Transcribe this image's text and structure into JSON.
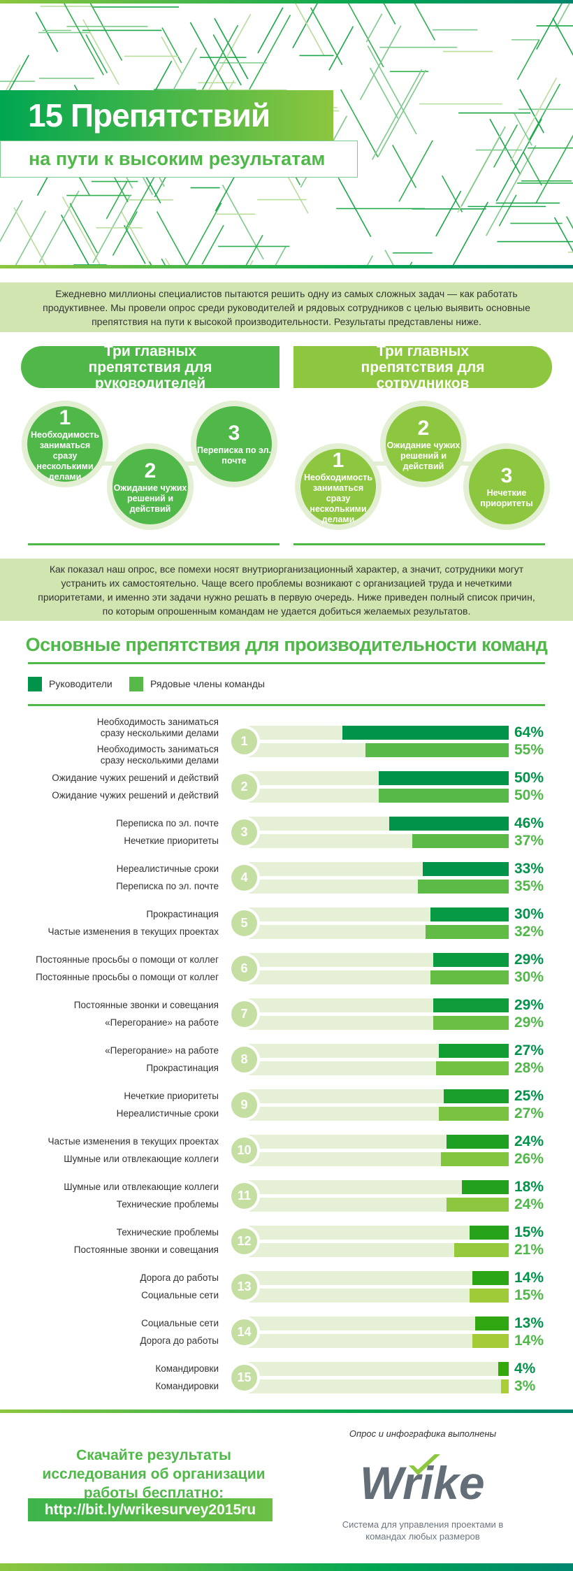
{
  "header": {
    "title": "15 Препятствий",
    "subtitle": "на пути к высоким результатам"
  },
  "intro": "Ежедневно миллионы специалистов пытаются решить одну из самых сложных задач — как работать продуктивнее. Мы провели опрос среди руководителей и рядовых сотрудников с целью выявить основные препятствия на пути к высокой производительности. Результаты представлены ниже.",
  "top3": [
    {
      "heading": "Три главных препятствия для руководителей",
      "color": "#4fb848",
      "items": [
        {
          "n": "1",
          "text": "Необходимость заниматься сразу несколькими делами"
        },
        {
          "n": "2",
          "text": "Ожидание чужих решений и действий"
        },
        {
          "n": "3",
          "text": "Переписка по эл. почте"
        }
      ]
    },
    {
      "heading": "Три главных препятствия для сотрудников",
      "color": "#8dc63f",
      "items": [
        {
          "n": "1",
          "text": "Необходимость заниматься сразу несколькими делами"
        },
        {
          "n": "2",
          "text": "Ожидание чужих решений и действий"
        },
        {
          "n": "3",
          "text": "Нечеткие приоритеты"
        }
      ]
    }
  ],
  "summary": "Как показал наш опрос, все помехи носят внутриорганизационный характер, а значит, сотрудники могут устранить их самостоятельно. Чаще всего проблемы возникают с организацией труда и нечеткими приоритетами, и именно эти задачи нужно решать в первую очередь. Ниже приведен полный список причин, по которым опрошенным командам не удается добиться желаемых результатов.",
  "chart_data": {
    "type": "bar",
    "orientation": "horizontal",
    "title": "Основные препятствия для производительности команд",
    "legend": [
      {
        "name": "Руководители",
        "color": "#00934a"
      },
      {
        "name": "Рядовые члены команды",
        "color": "#57b947"
      }
    ],
    "legend_position": "top-left",
    "xlim": [
      0,
      100
    ],
    "unit": "%",
    "groups": [
      {
        "rank": "1",
        "leader": {
          "label": "Необходимость заниматься сразу несколькими делами",
          "value": 64,
          "color": "#00934a"
        },
        "member": {
          "label": "Необходимость заниматься сразу несколькими делами",
          "value": 55,
          "color": "#57b947"
        }
      },
      {
        "rank": "2",
        "leader": {
          "label": "Ожидание чужих решений и действий",
          "value": 50,
          "color": "#00934a"
        },
        "member": {
          "label": "Ожидание чужих решений и действий",
          "value": 50,
          "color": "#57b947"
        }
      },
      {
        "rank": "3",
        "leader": {
          "label": "Переписка по эл. почте",
          "value": 46,
          "color": "#00934a"
        },
        "member": {
          "label": "Нечеткие приоритеты",
          "value": 37,
          "color": "#5bba47"
        }
      },
      {
        "rank": "4",
        "leader": {
          "label": "Нереалистичные сроки",
          "value": 33,
          "color": "#00934a"
        },
        "member": {
          "label": "Переписка по эл. почте",
          "value": 35,
          "color": "#5cba46"
        }
      },
      {
        "rank": "5",
        "leader": {
          "label": "Прокрастинация",
          "value": 30,
          "color": "#059a43"
        },
        "member": {
          "label": "Частые изменения в текущих проектах",
          "value": 32,
          "color": "#61bc45"
        }
      },
      {
        "rank": "6",
        "leader": {
          "label": "Постоянные просьбы о помощи от коллег",
          "value": 29,
          "color": "#0a9b40"
        },
        "member": {
          "label": "Постоянные просьбы о помощи от коллег",
          "value": 30,
          "color": "#66bd44"
        }
      },
      {
        "rank": "7",
        "leader": {
          "label": "Постоянные звонки и совещания",
          "value": 29,
          "color": "#0f9c3a"
        },
        "member": {
          "label": "«Перегорание» на работе",
          "value": 29,
          "color": "#6bbf43"
        }
      },
      {
        "rank": "8",
        "leader": {
          "label": "«Перегорание» на работе",
          "value": 27,
          "color": "#149d33"
        },
        "member": {
          "label": "Прокрастинация",
          "value": 28,
          "color": "#72c142"
        }
      },
      {
        "rank": "9",
        "leader": {
          "label": "Нечеткие приоритеты",
          "value": 25,
          "color": "#199e2b"
        },
        "member": {
          "label": "Нереалистичные сроки",
          "value": 27,
          "color": "#7ac341"
        }
      },
      {
        "rank": "10",
        "leader": {
          "label": "Частые изменения в текущих проектах",
          "value": 24,
          "color": "#1fa023"
        },
        "member": {
          "label": "Шумные или отвлекающие коллеги",
          "value": 26,
          "color": "#84c53f"
        }
      },
      {
        "rank": "11",
        "leader": {
          "label": "Шумные или отвлекающие коллеги",
          "value": 18,
          "color": "#22a11e"
        },
        "member": {
          "label": "Технические проблемы",
          "value": 24,
          "color": "#8dc63f"
        }
      },
      {
        "rank": "12",
        "leader": {
          "label": "Технические проблемы",
          "value": 15,
          "color": "#26a31a"
        },
        "member": {
          "label": "Постоянные звонки и совещания",
          "value": 21,
          "color": "#96c93c"
        }
      },
      {
        "rank": "13",
        "leader": {
          "label": "Дорога до работы",
          "value": 14,
          "color": "#2ba515"
        },
        "member": {
          "label": "Социальные сети",
          "value": 15,
          "color": "#9fcb39"
        }
      },
      {
        "rank": "14",
        "leader": {
          "label": "Социальные сети",
          "value": 13,
          "color": "#30a610"
        },
        "member": {
          "label": "Дорога до работы",
          "value": 14,
          "color": "#a5cc37"
        }
      },
      {
        "rank": "15",
        "leader": {
          "label": "Командировки",
          "value": 4,
          "color": "#35a80c"
        },
        "member": {
          "label": "Командировки",
          "value": 3,
          "color": "#aacd35"
        }
      }
    ]
  },
  "footer": {
    "download": "Скачайте результаты исследования об организации работы бесплатно:",
    "url": "http://bit.ly/wrikesurvey2015ru",
    "credit": "Опрос и инфографика выполнены",
    "logo": "Wrike",
    "tagline": "Система для управления проектами в командах любых размеров"
  },
  "colors": {
    "leader_pct": "#00934a",
    "member_pct": "#4fb848",
    "accent": "#4fb848",
    "band": "#d1e5b0"
  }
}
